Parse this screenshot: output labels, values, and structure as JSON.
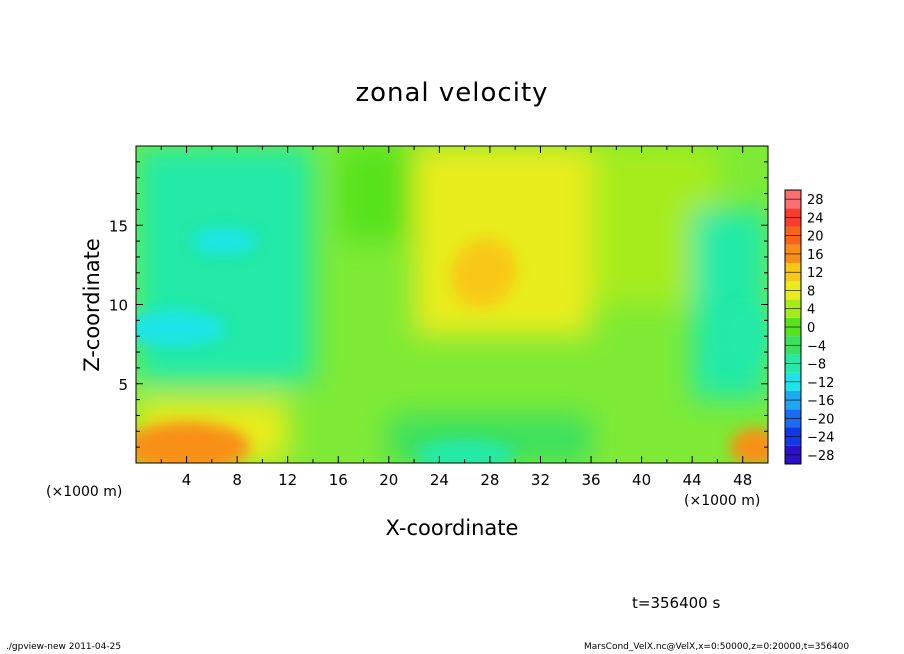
{
  "chart_data": {
    "type": "heatmap",
    "title": "zonal velocity",
    "xlabel": "X-coordinate",
    "ylabel": "Z-coordinate",
    "x_unit": "(×1000 m)",
    "xlim": [
      0,
      50
    ],
    "ylim": [
      0,
      20
    ],
    "x_ticks": [
      "4",
      "8",
      "12",
      "16",
      "20",
      "24",
      "28",
      "32",
      "36",
      "40",
      "44",
      "48"
    ],
    "x_tick_values": [
      4,
      8,
      12,
      16,
      20,
      24,
      28,
      32,
      36,
      40,
      44,
      48
    ],
    "y_ticks": [
      "5",
      "10",
      "15"
    ],
    "y_tick_values": [
      5,
      10,
      15
    ],
    "colorbar": {
      "labels": [
        "28",
        "24",
        "20",
        "16",
        "12",
        "8",
        "4",
        "0",
        "−4",
        "−8",
        "−12",
        "−16",
        "−20",
        "−24",
        "−28"
      ],
      "levels": [
        28,
        24,
        20,
        16,
        12,
        8,
        4,
        0,
        -4,
        -8,
        -12,
        -16,
        -20,
        -24,
        -28
      ],
      "vmin": -30,
      "vmax": 30
    },
    "field_features": [
      {
        "x": 4,
        "z": 1,
        "value": 18,
        "desc": "warm maximum near bottom-left"
      },
      {
        "x": 27.5,
        "z": 12,
        "value": 14,
        "desc": "maximum in upper center"
      },
      {
        "x": 49,
        "z": 1,
        "value": 16,
        "desc": "maximum bottom-right corner"
      },
      {
        "x": 3,
        "z": 8.5,
        "value": -12,
        "desc": "minimum left mid-height"
      },
      {
        "x": 7,
        "z": 14,
        "value": -12,
        "desc": "minimum upper left"
      },
      {
        "x": 26,
        "z": 0.5,
        "value": -9,
        "desc": "minimum near bottom center"
      },
      {
        "x": 48,
        "z": 8,
        "value": -9,
        "desc": "minimum right edge"
      }
    ]
  },
  "annotations": {
    "time": "t=356400 s",
    "footer_left": "./gpview-new   2011-04-25",
    "footer_right": "MarsCond_VelX.nc@VelX,x=0:50000,z=0:20000,t=356400"
  }
}
